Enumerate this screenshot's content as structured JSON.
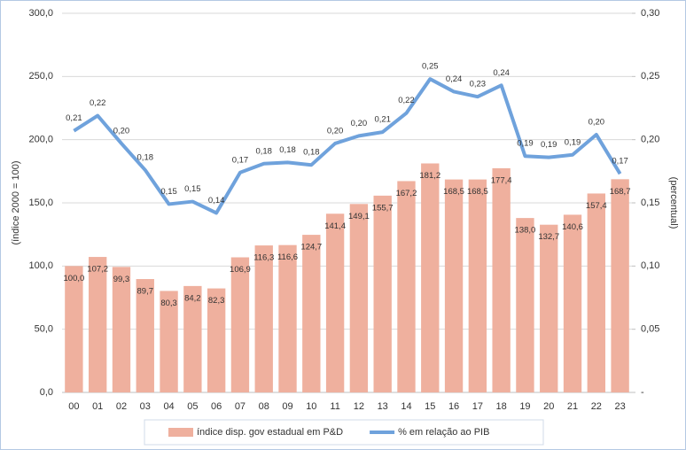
{
  "chart_data": {
    "type": "bar",
    "y_label": "(índice 2000 = 100)",
    "y2_label": "(percentual)",
    "categories": [
      "00",
      "01",
      "02",
      "03",
      "04",
      "05",
      "06",
      "07",
      "08",
      "09",
      "10",
      "11",
      "12",
      "13",
      "14",
      "15",
      "16",
      "17",
      "18",
      "19",
      "20",
      "21",
      "22",
      "23"
    ],
    "series": [
      {
        "name": "índice disp. gov estadual em P&D",
        "type": "bar",
        "color": "#efb09e",
        "values": [
          100.0,
          107.2,
          99.3,
          89.7,
          80.3,
          84.2,
          82.3,
          106.9,
          116.3,
          116.6,
          124.7,
          141.4,
          149.1,
          155.7,
          167.2,
          181.2,
          168.5,
          168.5,
          177.4,
          138.0,
          132.7,
          140.6,
          157.4,
          168.7
        ],
        "value_labels": [
          "100,0",
          "107,2",
          "99,3",
          "89,7",
          "80,3",
          "84,2",
          "82,3",
          "106,9",
          "116,3",
          "116,6",
          "124,7",
          "141,4",
          "149,1",
          "155,7",
          "167,2",
          "181,2",
          "168,5",
          "168,5",
          "177,4",
          "138,0",
          "132,7",
          "140,6",
          "157,4",
          "168,7"
        ]
      },
      {
        "name": "% em relação ao PIB",
        "type": "line",
        "axis": "y2",
        "color": "#6fa2dc",
        "values": [
          0.207,
          0.219,
          0.197,
          0.176,
          0.149,
          0.151,
          0.142,
          0.174,
          0.181,
          0.182,
          0.18,
          0.197,
          0.203,
          0.206,
          0.221,
          0.248,
          0.238,
          0.234,
          0.243,
          0.187,
          0.186,
          0.188,
          0.204,
          0.173
        ],
        "value_labels": [
          "0,21",
          "0,22",
          "0,20",
          "0,18",
          "0,15",
          "0,15",
          "0,14",
          "0,17",
          "0,18",
          "0,18",
          "0,18",
          "0,20",
          "0,20",
          "0,21",
          "0,22",
          "0,25",
          "0,24",
          "0,23",
          "0,24",
          "0,19",
          "0,19",
          "0,19",
          "0,20",
          "0,17"
        ]
      }
    ],
    "ylim": [
      0,
      300
    ],
    "yticks": [
      {
        "value": 0,
        "label": "0,0"
      },
      {
        "value": 50,
        "label": "50,0"
      },
      {
        "value": 100,
        "label": "100,0"
      },
      {
        "value": 150,
        "label": "150,0"
      },
      {
        "value": 200,
        "label": "200,0"
      },
      {
        "value": 250,
        "label": "250,0"
      },
      {
        "value": 300,
        "label": "300,0"
      }
    ],
    "y2lim": [
      0,
      0.3
    ],
    "y2ticks": [
      {
        "value": 0,
        "label": "-"
      },
      {
        "value": 0.05,
        "label": "0,05"
      },
      {
        "value": 0.1,
        "label": "0,10"
      },
      {
        "value": 0.15,
        "label": "0,15"
      },
      {
        "value": 0.2,
        "label": "0,20"
      },
      {
        "value": 0.25,
        "label": "0,25"
      },
      {
        "value": 0.3,
        "label": "0,30"
      }
    ],
    "grid": true
  }
}
